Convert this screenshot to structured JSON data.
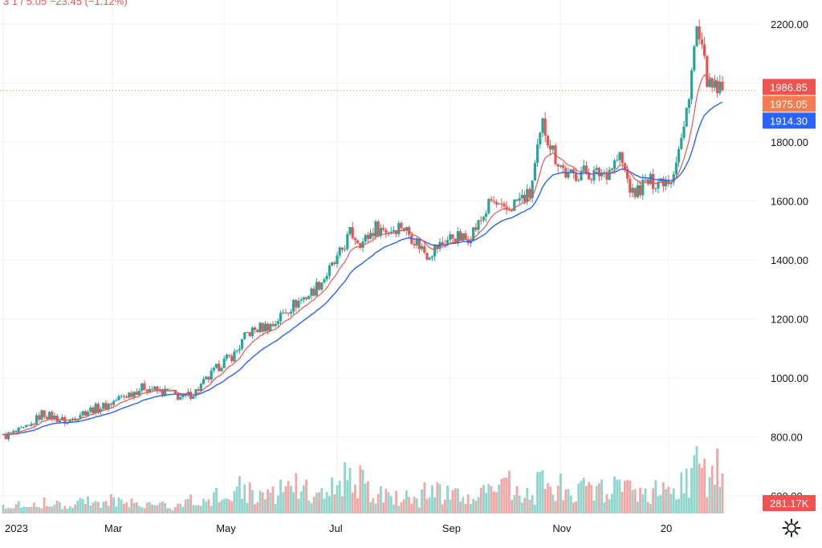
{
  "legend": {
    "partial_text": "3 1 / 5.05 −23.45 (−1.12%)"
  },
  "colors": {
    "up": "#26a69a",
    "down": "#ef5350",
    "vol_up": "#8fd6cc",
    "vol_down": "#f2a6a5",
    "ema_fast": "#ef5350",
    "ema_slow": "#2962ff",
    "grid": "#f0f3fa",
    "badge_high": "#ef5350",
    "badge_last": "#f57c4f",
    "badge_ma": "#2962ff",
    "badge_vol": "#ef5350"
  },
  "price_badges": [
    {
      "label": "1986.85",
      "value": 1986.85,
      "color_key": "badge_high"
    },
    {
      "label": "1975.05",
      "value": 1975.05,
      "color_key": "badge_last"
    },
    {
      "label": "1914.30",
      "value": 1914.3,
      "color_key": "badge_ma"
    }
  ],
  "volume_badge": {
    "label": "281.17K"
  },
  "settings_icon": "gear-icon",
  "chart_data": {
    "type": "candlestick",
    "title": "",
    "ylim": [
      540,
      2260
    ],
    "y_ticks": [
      "600.00",
      "800.00",
      "1000.00",
      "1200.00",
      "1400.00",
      "1600.00",
      "1800.00",
      "2000.00",
      "2200.00"
    ],
    "y_tick_values": [
      600,
      800,
      1000,
      1200,
      1400,
      1600,
      1800,
      2000,
      2200
    ],
    "x_ticks": [
      "2023",
      "Mar",
      "May",
      "Jul",
      "Sep",
      "Nov",
      "20"
    ],
    "x_tick_weeks": [
      0,
      8.5,
      17.2,
      26,
      34.8,
      43.4,
      51.8
    ],
    "last_price_line": 1975.05,
    "weekly_close": [
      800,
      815,
      830,
      880,
      865,
      850,
      880,
      895,
      905,
      930,
      950,
      970,
      955,
      950,
      930,
      955,
      1000,
      1050,
      1080,
      1150,
      1170,
      1180,
      1230,
      1260,
      1290,
      1340,
      1400,
      1490,
      1460,
      1510,
      1500,
      1520,
      1470,
      1420,
      1450,
      1480,
      1470,
      1520,
      1600,
      1560,
      1600,
      1620,
      1860,
      1750,
      1680,
      1700,
      1690,
      1700,
      1750,
      1620,
      1660,
      1670,
      1680,
      1840,
      2180,
      1980,
      1975
    ],
    "volume": [
      60,
      55,
      50,
      70,
      65,
      60,
      75,
      90,
      80,
      70,
      65,
      60,
      50,
      45,
      70,
      80,
      90,
      120,
      160,
      130,
      100,
      110,
      140,
      180,
      150,
      130,
      160,
      220,
      200,
      140,
      120,
      110,
      90,
      150,
      130,
      120,
      110,
      170,
      130,
      200,
      140,
      130,
      250,
      180,
      130,
      150,
      140,
      160,
      170,
      150,
      130,
      180,
      160,
      200,
      300,
      230,
      281
    ]
  }
}
